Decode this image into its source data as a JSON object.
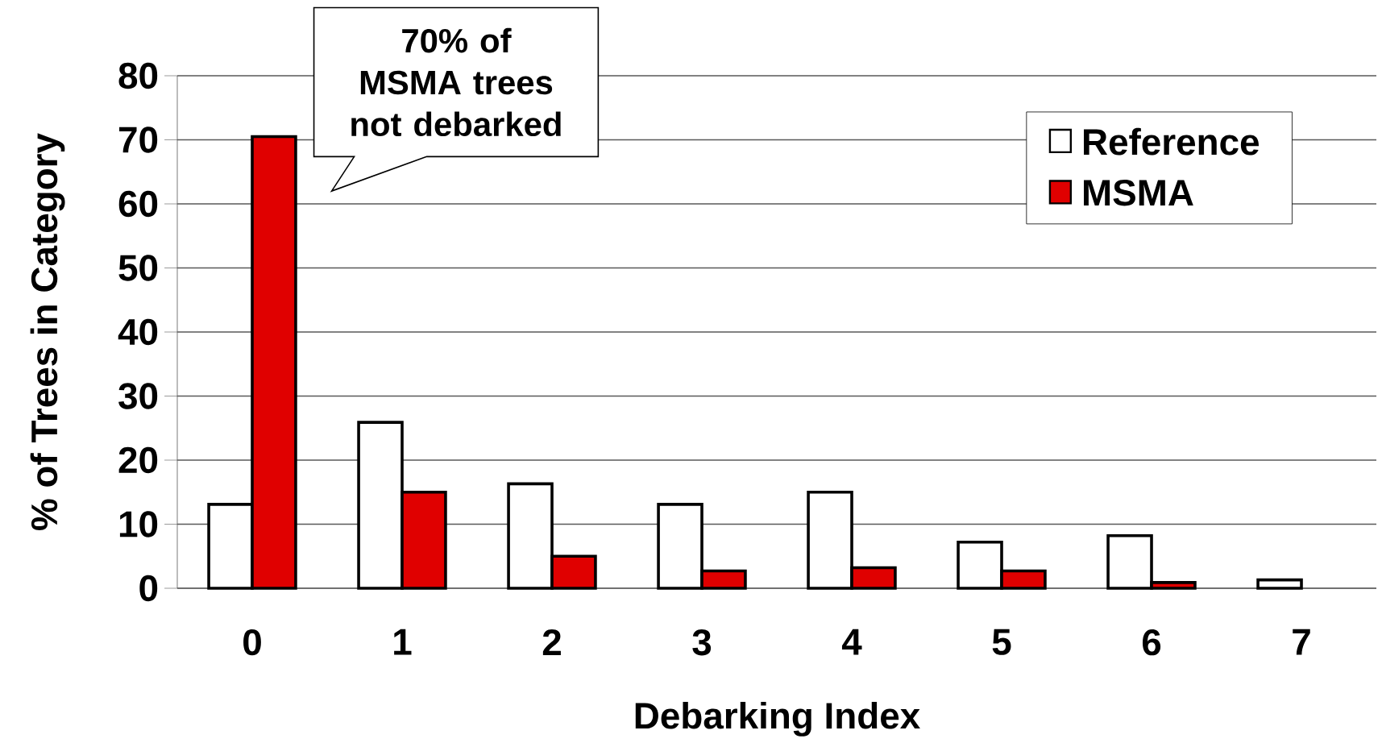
{
  "chart_data": {
    "type": "bar",
    "xlabel": "Debarking Index",
    "ylabel": "% of Trees in Category",
    "categories": [
      "0",
      "1",
      "2",
      "3",
      "4",
      "5",
      "6",
      "7"
    ],
    "series": [
      {
        "name": "Reference",
        "color": "#ffffff",
        "values": [
          13.1,
          25.9,
          16.3,
          13.1,
          15.0,
          7.2,
          8.2,
          1.3
        ]
      },
      {
        "name": "MSMA",
        "color": "#e00000",
        "values": [
          70.5,
          15.0,
          5.0,
          2.7,
          3.2,
          2.7,
          0.9,
          null
        ]
      }
    ],
    "ylim": [
      0,
      80
    ],
    "yticks": [
      0,
      10,
      20,
      30,
      40,
      50,
      60,
      70,
      80
    ],
    "grid": "y",
    "legend": "top right",
    "annotations": [
      "70% of MSMA trees not debarked"
    ]
  }
}
